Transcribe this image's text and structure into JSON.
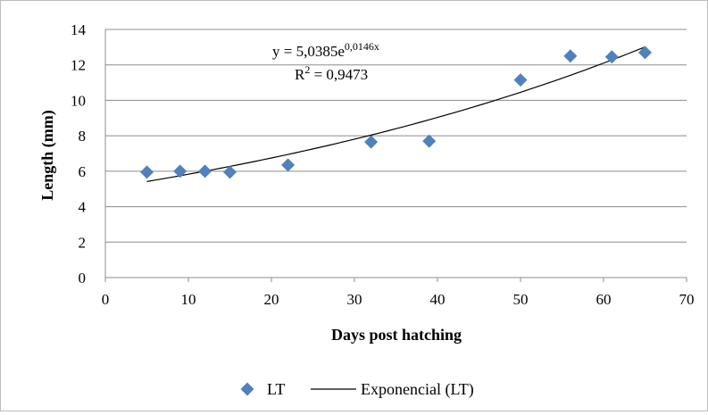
{
  "chart_data": {
    "type": "scatter",
    "title": "",
    "xlabel": "Days post hatching",
    "ylabel": "Length (mm)",
    "xlim": [
      0,
      70
    ],
    "ylim": [
      0,
      14
    ],
    "xticks": [
      0,
      10,
      20,
      30,
      40,
      50,
      60,
      70
    ],
    "yticks": [
      0,
      2,
      4,
      6,
      8,
      10,
      12,
      14
    ],
    "grid": "horizontal",
    "legend_position": "bottom",
    "series": [
      {
        "name": "LT",
        "marker": "diamond",
        "color": "#4f81bd",
        "points": [
          {
            "x": 5,
            "y": 5.95
          },
          {
            "x": 9,
            "y": 6.0
          },
          {
            "x": 12,
            "y": 6.0
          },
          {
            "x": 15,
            "y": 5.95
          },
          {
            "x": 22,
            "y": 6.35
          },
          {
            "x": 32,
            "y": 7.65
          },
          {
            "x": 39,
            "y": 7.7
          },
          {
            "x": 50,
            "y": 11.15
          },
          {
            "x": 56,
            "y": 12.5
          },
          {
            "x": 61,
            "y": 12.45
          },
          {
            "x": 65,
            "y": 12.7
          }
        ]
      }
    ],
    "trendline": {
      "name": "Exponencial (LT)",
      "type": "exponential",
      "coefficient": 5.0385,
      "exponent": 0.0146,
      "x_range": [
        5,
        65
      ],
      "color": "#000000"
    },
    "annotations": {
      "equation_prefix": "y = 5,0385e",
      "equation_exponent": "0,0146x",
      "r2_prefix": "R",
      "r2_power": "2",
      "r2_suffix": " = 0,9473"
    }
  }
}
